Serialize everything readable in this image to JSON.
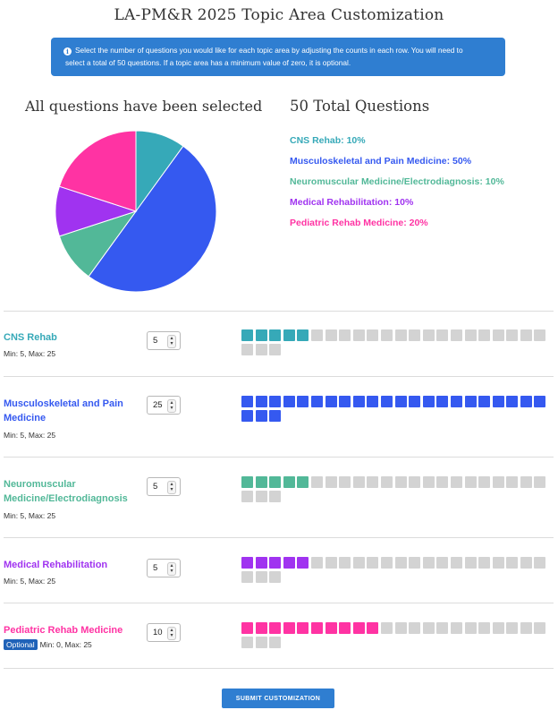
{
  "page": {
    "title": "LA-PM&R 2025 Topic Area Customization",
    "info_line1": "Select the number of questions you would like for each topic area by adjusting the counts in each row. You will need to",
    "info_line2": "select a total of 50 questions. If a topic area has a minimum value of zero, it is optional.",
    "info_icon": "info-circle-icon"
  },
  "summary": {
    "pie_heading": "All questions have been selected",
    "total_heading": "50 Total Questions"
  },
  "chart_data": {
    "type": "pie",
    "total": 50,
    "slices": [
      {
        "name": "CNS Rehab",
        "value": 5,
        "percent": 10,
        "color": "#36a9b8"
      },
      {
        "name": "Musculoskeletal and Pain Medicine",
        "value": 25,
        "percent": 50,
        "color": "#3559f0"
      },
      {
        "name": "Neuromuscular Medicine/Electrodiagnosis",
        "value": 5,
        "percent": 10,
        "color": "#52b898"
      },
      {
        "name": "Medical Rehabilitation",
        "value": 5,
        "percent": 10,
        "color": "#a033f0"
      },
      {
        "name": "Pediatric Rehab Medicine",
        "value": 10,
        "percent": 20,
        "color": "#ff33a3"
      }
    ]
  },
  "legend": [
    {
      "label": "CNS Rehab: 10%",
      "color": "#36a9b8"
    },
    {
      "label": "Musculoskeletal and Pain Medicine: 50%",
      "color": "#3559f0"
    },
    {
      "label": "Neuromuscular Medicine/Electrodiagnosis: 10%",
      "color": "#52b898"
    },
    {
      "label": "Medical Rehabilitation: 10%",
      "color": "#a033f0"
    },
    {
      "label": "Pediatric Rehab Medicine: 20%",
      "color": "#ff33a3"
    }
  ],
  "topics": [
    {
      "name_line1": "CNS Rehab",
      "name_line2": "",
      "meta": "Min: 5, Max: 25",
      "optional": "",
      "value": "5",
      "max": 25,
      "color": "#36a9b8"
    },
    {
      "name_line1": "Musculoskeletal and Pain",
      "name_line2": "Medicine",
      "meta": "Min: 5, Max: 25",
      "optional": "",
      "value": "25",
      "max": 25,
      "color": "#3559f0"
    },
    {
      "name_line1": "Neuromuscular",
      "name_line2": "Medicine/Electrodiagnosis",
      "meta": "Min: 5, Max: 25",
      "optional": "",
      "value": "5",
      "max": 25,
      "color": "#52b898"
    },
    {
      "name_line1": "Medical Rehabilitation",
      "name_line2": "",
      "meta": "Min: 5, Max: 25",
      "optional": "",
      "value": "5",
      "max": 25,
      "color": "#a033f0"
    },
    {
      "name_line1": "Pediatric Rehab Medicine",
      "name_line2": "",
      "meta": "Min: 0, Max: 25",
      "optional": "Optional",
      "value": "10",
      "max": 25,
      "color": "#ff33a3"
    }
  ],
  "submit_label": "SUBMIT CUSTOMIZATION"
}
